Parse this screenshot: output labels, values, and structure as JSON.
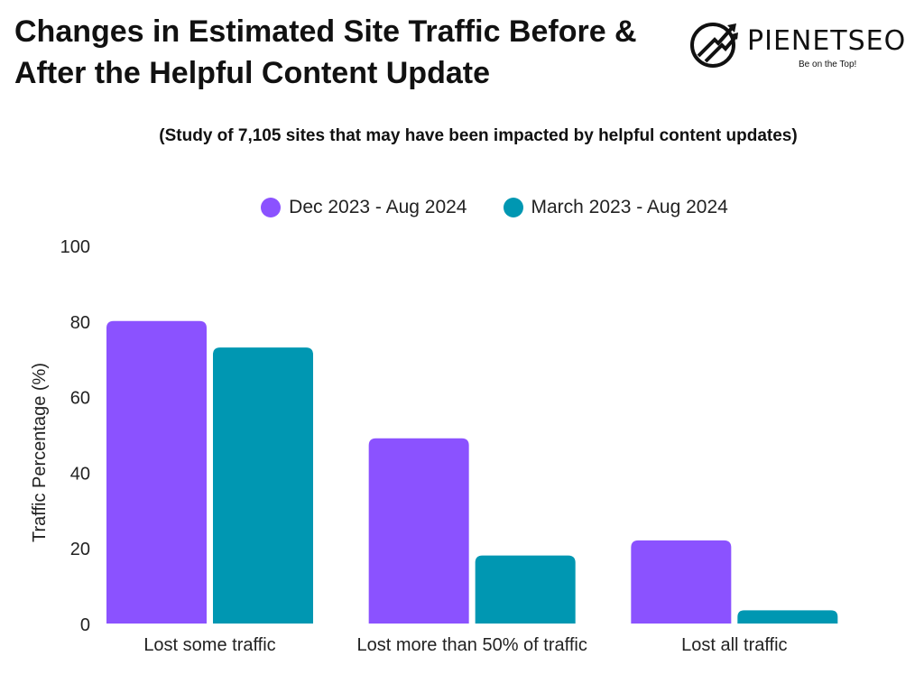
{
  "header": {
    "title": "Changes in Estimated Site Traffic Before & After the Helpful Content Update",
    "subtitle": "(Study of 7,105 sites that may have been impacted by helpful content updates)"
  },
  "brand": {
    "name": "PIENETSEO",
    "tagline": "Be on the Top!"
  },
  "colors": {
    "series_1": "#8b52ff",
    "series_2": "#0097b2"
  },
  "chart_data": {
    "type": "bar",
    "title": "Changes in Estimated Site Traffic Before & After the Helpful Content Update",
    "xlabel": "",
    "ylabel": "Traffic Percentage (%)",
    "ylim": [
      0,
      100
    ],
    "yticks": [
      0,
      20,
      40,
      60,
      80,
      100
    ],
    "grid": false,
    "legend_position": "top-center",
    "categories": [
      "Lost some traffic",
      "Lost more than 50% of traffic",
      "Lost all traffic"
    ],
    "series": [
      {
        "name": "Dec 2023 - Aug 2024",
        "values": [
          80,
          49,
          22
        ]
      },
      {
        "name": "March 2023 - Aug 2024",
        "values": [
          73,
          18,
          3.5
        ]
      }
    ]
  }
}
